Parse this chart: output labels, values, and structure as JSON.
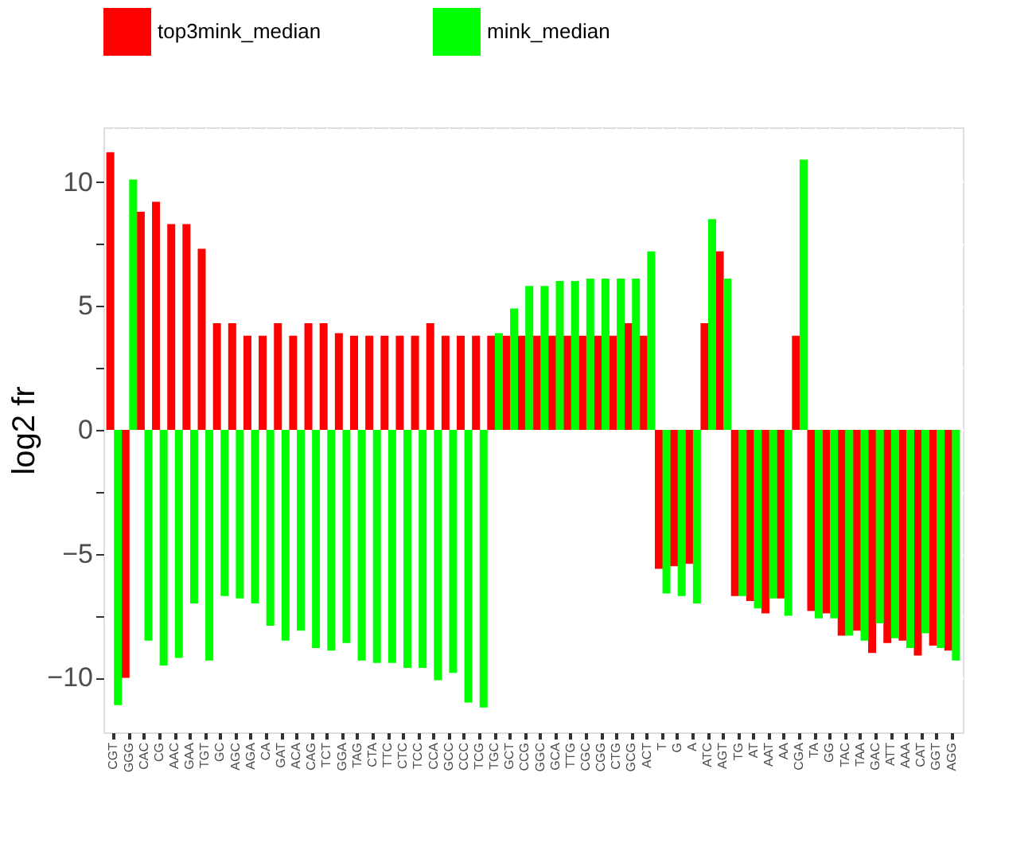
{
  "chart_data": {
    "type": "bar",
    "ylabel": "log2 fr",
    "categories": [
      "CGT",
      "GGG",
      "CAC",
      "CG",
      "AAC",
      "GAA",
      "TGT",
      "GC",
      "AGC",
      "AGA",
      "CA",
      "GAT",
      "ACA",
      "CAG",
      "TCT",
      "GGA",
      "TAG",
      "CTA",
      "TTC",
      "CTC",
      "TCC",
      "CCA",
      "GCC",
      "CCC",
      "TCG",
      "TGC",
      "GCT",
      "CCG",
      "GGC",
      "GCA",
      "TTG",
      "CGC",
      "CGG",
      "CTG",
      "GCG",
      "ACT",
      "T",
      "G",
      "A",
      "ATC",
      "AGT",
      "TG",
      "AT",
      "AAT",
      "AA",
      "CGA",
      "TA",
      "GG",
      "TAC",
      "TAA",
      "GAC",
      "ATT",
      "AAA",
      "CAT",
      "GGT",
      "AGG"
    ],
    "series": [
      {
        "name": "top3mink_median",
        "color": "#ff0000",
        "values": [
          11.2,
          -10.0,
          8.8,
          9.2,
          8.3,
          8.3,
          7.3,
          4.3,
          4.3,
          3.8,
          3.8,
          4.3,
          3.8,
          4.3,
          4.3,
          3.9,
          3.8,
          3.8,
          3.8,
          3.8,
          3.8,
          4.3,
          3.8,
          3.8,
          3.8,
          3.8,
          3.8,
          3.8,
          3.8,
          3.8,
          3.8,
          3.8,
          3.8,
          3.8,
          4.3,
          3.8,
          -5.6,
          -5.5,
          -5.4,
          4.3,
          7.2,
          -6.7,
          -6.9,
          -7.4,
          -6.8,
          3.8,
          -7.3,
          -7.4,
          -8.3,
          -8.1,
          -9.0,
          -8.6,
          -8.5,
          -9.1,
          -8.7,
          -8.9
        ]
      },
      {
        "name": "mink_median",
        "color": "#00ff00",
        "values": [
          -11.1,
          10.1,
          -8.5,
          -9.5,
          -9.2,
          -7.0,
          -9.3,
          -6.7,
          -6.8,
          -7.0,
          -7.9,
          -8.5,
          -8.1,
          -8.8,
          -8.9,
          -8.6,
          -9.3,
          -9.4,
          -9.4,
          -9.6,
          -9.6,
          -10.1,
          -9.8,
          -11.0,
          -11.2,
          3.9,
          4.9,
          5.8,
          5.8,
          6.0,
          6.0,
          6.1,
          6.1,
          6.1,
          6.1,
          7.2,
          -6.6,
          -6.7,
          -7.0,
          8.5,
          6.1,
          -6.7,
          -7.2,
          -6.8,
          -7.5,
          10.9,
          -7.6,
          -7.6,
          -8.3,
          -8.5,
          -7.8,
          -8.4,
          -8.8,
          -8.2,
          -8.8,
          -9.3
        ]
      }
    ],
    "ylim": [
      -12.2,
      12.2
    ],
    "yticks": [
      -10,
      {
        "value": -7.5,
        "label": null
      },
      -5,
      {
        "value": -2.5,
        "label": null
      },
      0,
      {
        "value": 2.5,
        "label": null
      },
      5,
      {
        "value": 7.5,
        "label": null
      },
      10
    ],
    "grid": true,
    "legend": "top"
  }
}
